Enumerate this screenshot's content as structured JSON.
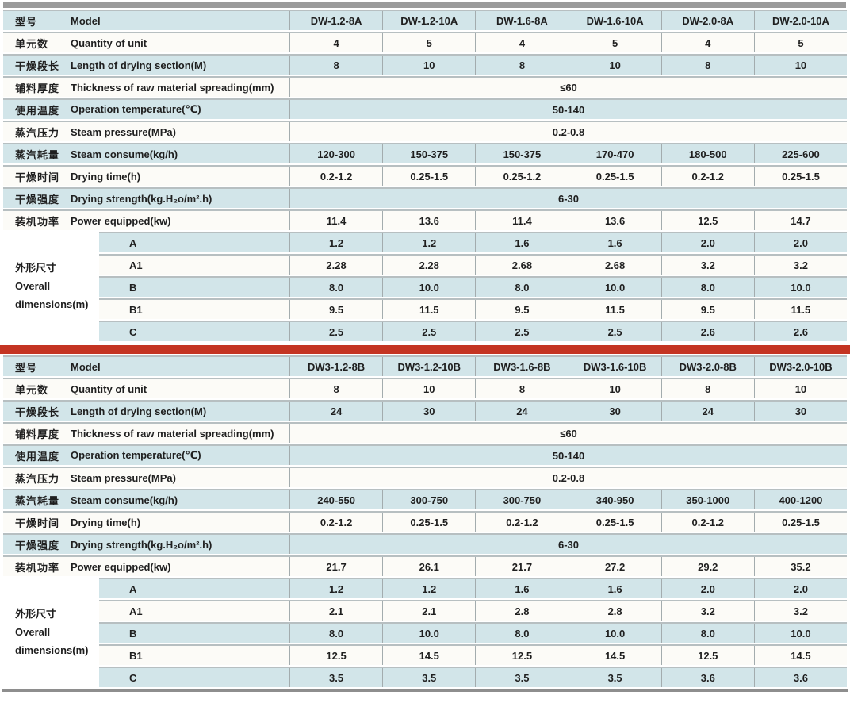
{
  "palette": {
    "row_blue": "#d2e5e9",
    "row_white": "#fcfbf7",
    "line_gray": "#b7bfc1",
    "col_line": "#a3acae",
    "divider_red": "#c43422",
    "top_bar_gray": "#9b9b9b",
    "bottom_bar_gray": "#8e8e8e",
    "text": "#1f1f1f"
  },
  "tables": [
    {
      "name": "series-a",
      "rows": [
        {
          "zh": "型号",
          "en": "Model",
          "cells": [
            "DW-1.2-8A",
            "DW-1.2-10A",
            "DW-1.6-8A",
            "DW-1.6-10A",
            "DW-2.0-8A",
            "DW-2.0-10A"
          ]
        },
        {
          "zh": "单元数",
          "en": "Quantity of unit",
          "cells": [
            "4",
            "5",
            "4",
            "5",
            "4",
            "5"
          ]
        },
        {
          "zh": "干燥段长",
          "en": "Length of drying section(M)",
          "cells": [
            "8",
            "10",
            "8",
            "10",
            "8",
            "10"
          ]
        },
        {
          "zh": "铺料厚度",
          "en": "Thickness of raw material spreading(mm)",
          "merged": "≤60"
        },
        {
          "zh": "使用温度",
          "en": "Operation temperature(℃)",
          "merged": "50-140"
        },
        {
          "zh": "蒸汽压力",
          "en": "Steam pressure(MPa)",
          "merged": "0.2-0.8"
        },
        {
          "zh": "蒸汽耗量",
          "en": "Steam consume(kg/h)",
          "cells": [
            "120-300",
            "150-375",
            "150-375",
            "170-470",
            "180-500",
            "225-600"
          ]
        },
        {
          "zh": "干燥时间",
          "en": "Drying time(h)",
          "cells": [
            "0.2-1.2",
            "0.25-1.5",
            "0.25-1.2",
            "0.25-1.5",
            "0.2-1.2",
            "0.25-1.5"
          ]
        },
        {
          "zh": "干燥强度",
          "en": "Drying strength(kg.H₂o/m².h)",
          "merged": "6-30"
        },
        {
          "zh": "装机功率",
          "en": "Power equipped(kw)",
          "cells": [
            "11.4",
            "13.6",
            "11.4",
            "13.6",
            "12.5",
            "14.7"
          ]
        }
      ],
      "dimensions": {
        "zh": "外形尺寸",
        "en_lines": [
          "Overall",
          "dimensions(m)"
        ],
        "rows": [
          {
            "label": "A",
            "cells": [
              "1.2",
              "1.2",
              "1.6",
              "1.6",
              "2.0",
              "2.0"
            ]
          },
          {
            "label": "A1",
            "cells": [
              "2.28",
              "2.28",
              "2.68",
              "2.68",
              "3.2",
              "3.2"
            ]
          },
          {
            "label": "B",
            "cells": [
              "8.0",
              "10.0",
              "8.0",
              "10.0",
              "8.0",
              "10.0"
            ]
          },
          {
            "label": "B1",
            "cells": [
              "9.5",
              "11.5",
              "9.5",
              "11.5",
              "9.5",
              "11.5"
            ]
          },
          {
            "label": "C",
            "cells": [
              "2.5",
              "2.5",
              "2.5",
              "2.5",
              "2.6",
              "2.6"
            ]
          }
        ]
      }
    },
    {
      "name": "series-b",
      "rows": [
        {
          "zh": "型号",
          "en": "Model",
          "cells": [
            "DW3-1.2-8B",
            "DW3-1.2-10B",
            "DW3-1.6-8B",
            "DW3-1.6-10B",
            "DW3-2.0-8B",
            "DW3-2.0-10B"
          ]
        },
        {
          "zh": "单元数",
          "en": "Quantity of unit",
          "cells": [
            "8",
            "10",
            "8",
            "10",
            "8",
            "10"
          ]
        },
        {
          "zh": "干燥段长",
          "en": "Length of drying section(M)",
          "cells": [
            "24",
            "30",
            "24",
            "30",
            "24",
            "30"
          ]
        },
        {
          "zh": "铺料厚度",
          "en": "Thickness of raw material spreading(mm)",
          "merged": "≤60"
        },
        {
          "zh": "使用温度",
          "en": "Operation temperature(℃)",
          "merged": "50-140"
        },
        {
          "zh": "蒸汽压力",
          "en": "Steam pressure(MPa)",
          "merged": "0.2-0.8"
        },
        {
          "zh": "蒸汽耗量",
          "en": "Steam consume(kg/h)",
          "cells": [
            "240-550",
            "300-750",
            "300-750",
            "340-950",
            "350-1000",
            "400-1200"
          ]
        },
        {
          "zh": "干燥时间",
          "en": "Drying time(h)",
          "cells": [
            "0.2-1.2",
            "0.25-1.5",
            "0.2-1.2",
            "0.25-1.5",
            "0.2-1.2",
            "0.25-1.5"
          ]
        },
        {
          "zh": "干燥强度",
          "en": "Drying strength(kg.H₂o/m².h)",
          "merged": "6-30"
        },
        {
          "zh": "装机功率",
          "en": "Power equipped(kw)",
          "cells": [
            "21.7",
            "26.1",
            "21.7",
            "27.2",
            "29.2",
            "35.2"
          ]
        }
      ],
      "dimensions": {
        "zh": "外形尺寸",
        "en_lines": [
          "Overall",
          "dimensions(m)"
        ],
        "rows": [
          {
            "label": "A",
            "cells": [
              "1.2",
              "1.2",
              "1.6",
              "1.6",
              "2.0",
              "2.0"
            ]
          },
          {
            "label": "A1",
            "cells": [
              "2.1",
              "2.1",
              "2.8",
              "2.8",
              "3.2",
              "3.2"
            ]
          },
          {
            "label": "B",
            "cells": [
              "8.0",
              "10.0",
              "8.0",
              "10.0",
              "8.0",
              "10.0"
            ]
          },
          {
            "label": "B1",
            "cells": [
              "12.5",
              "14.5",
              "12.5",
              "14.5",
              "12.5",
              "14.5"
            ]
          },
          {
            "label": "C",
            "cells": [
              "3.5",
              "3.5",
              "3.5",
              "3.5",
              "3.6",
              "3.6"
            ]
          }
        ]
      }
    }
  ]
}
